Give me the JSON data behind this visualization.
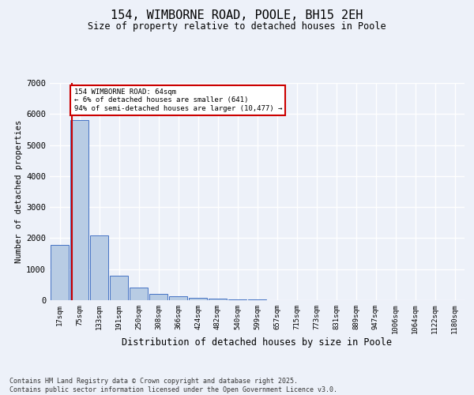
{
  "title": "154, WIMBORNE ROAD, POOLE, BH15 2EH",
  "subtitle": "Size of property relative to detached houses in Poole",
  "xlabel": "Distribution of detached houses by size in Poole",
  "ylabel": "Number of detached properties",
  "categories": [
    "17sqm",
    "75sqm",
    "133sqm",
    "191sqm",
    "250sqm",
    "308sqm",
    "366sqm",
    "424sqm",
    "482sqm",
    "540sqm",
    "599sqm",
    "657sqm",
    "715sqm",
    "773sqm",
    "831sqm",
    "889sqm",
    "947sqm",
    "1006sqm",
    "1064sqm",
    "1122sqm",
    "1180sqm"
  ],
  "values": [
    1780,
    5800,
    2100,
    790,
    420,
    215,
    130,
    85,
    52,
    28,
    14,
    7,
    5,
    3,
    2,
    1,
    1,
    0,
    0,
    0,
    0
  ],
  "bar_color": "#b8cce4",
  "bar_edge_color": "#4472c4",
  "vline_color": "#cc0000",
  "vline_x": 0.62,
  "annotation_text": "154 WIMBORNE ROAD: 64sqm\n← 6% of detached houses are smaller (641)\n94% of semi-detached houses are larger (10,477) →",
  "ylim": [
    0,
    7000
  ],
  "yticks": [
    0,
    1000,
    2000,
    3000,
    4000,
    5000,
    6000,
    7000
  ],
  "background_color": "#edf1f9",
  "grid_color": "#ffffff",
  "footnote": "Contains HM Land Registry data © Crown copyright and database right 2025.\nContains public sector information licensed under the Open Government Licence v3.0."
}
